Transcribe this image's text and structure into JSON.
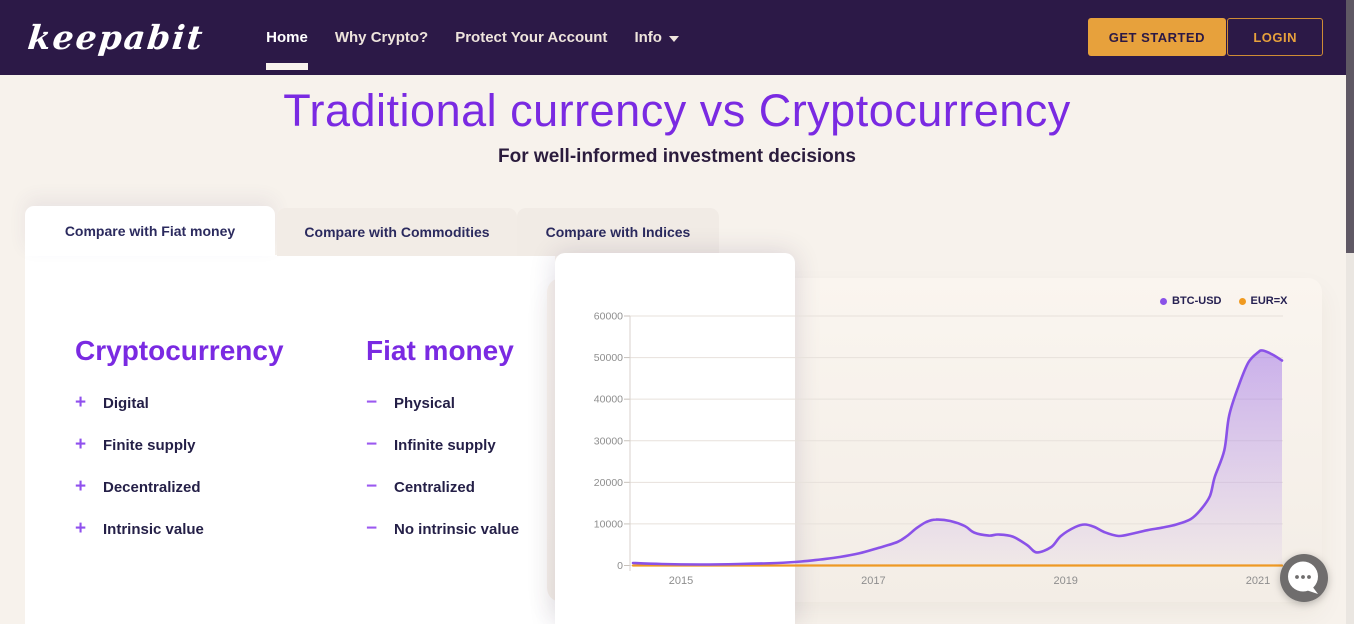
{
  "navbar": {
    "logo": "keepabit",
    "links": [
      {
        "label": "Home"
      },
      {
        "label": "Why Crypto?"
      },
      {
        "label": "Protect Your Account"
      },
      {
        "label": "Info"
      }
    ],
    "get_started_label": "GET STARTED",
    "login_label": "LOGIN",
    "accent_color": "#e7a13c",
    "bg_color": "#2c1947"
  },
  "hero": {
    "title": "Traditional currency vs Cryptocurrency",
    "subtitle": "For well-informed investment decisions",
    "title_color": "#7a2ae2"
  },
  "tabs": [
    {
      "label": "Compare with Fiat money",
      "active": true
    },
    {
      "label": "Compare with Commodities",
      "active": false
    },
    {
      "label": "Compare with Indices",
      "active": false
    }
  ],
  "compare": {
    "crypto": {
      "heading": "Cryptocurrency",
      "bullet": "+",
      "items": [
        "Digital",
        "Finite supply",
        "Decentralized",
        "Intrinsic value"
      ]
    },
    "fiat": {
      "heading": "Fiat money",
      "bullet": "−",
      "items": [
        "Physical",
        "Infinite supply",
        "Centralized",
        "No intrinsic value"
      ]
    }
  },
  "chart_data": {
    "type": "area",
    "series": [
      {
        "name": "BTC-USD",
        "color": "#8a52e8",
        "points": [
          [
            2014.5,
            600
          ],
          [
            2014.8,
            360
          ],
          [
            2015.2,
            240
          ],
          [
            2015.6,
            360
          ],
          [
            2016.0,
            600
          ],
          [
            2016.25,
            950
          ],
          [
            2016.45,
            1450
          ],
          [
            2016.65,
            2050
          ],
          [
            2016.85,
            2900
          ],
          [
            2017.05,
            4200
          ],
          [
            2017.25,
            5650
          ],
          [
            2017.35,
            7100
          ],
          [
            2017.45,
            9000
          ],
          [
            2017.55,
            10450
          ],
          [
            2017.65,
            11050
          ],
          [
            2017.8,
            10700
          ],
          [
            2017.95,
            9500
          ],
          [
            2018.05,
            7900
          ],
          [
            2018.2,
            7200
          ],
          [
            2018.3,
            7450
          ],
          [
            2018.45,
            6950
          ],
          [
            2018.6,
            4900
          ],
          [
            2018.7,
            3150
          ],
          [
            2018.85,
            4450
          ],
          [
            2018.95,
            7100
          ],
          [
            2019.1,
            9250
          ],
          [
            2019.2,
            9850
          ],
          [
            2019.3,
            9250
          ],
          [
            2019.4,
            8050
          ],
          [
            2019.55,
            7100
          ],
          [
            2019.7,
            7700
          ],
          [
            2019.85,
            8500
          ],
          [
            2020.0,
            9100
          ],
          [
            2020.15,
            9850
          ],
          [
            2020.3,
            11150
          ],
          [
            2020.4,
            13300
          ],
          [
            2020.5,
            16700
          ],
          [
            2020.55,
            21250
          ],
          [
            2020.65,
            27700
          ],
          [
            2020.7,
            36100
          ],
          [
            2020.8,
            43300
          ],
          [
            2020.9,
            48850
          ],
          [
            2021.0,
            51250
          ],
          [
            2021.05,
            51700
          ],
          [
            2021.15,
            50750
          ],
          [
            2021.25,
            49300
          ]
        ]
      },
      {
        "name": "EUR=X",
        "color": "#f09a20",
        "points": [
          [
            2014.5,
            1.2
          ],
          [
            2021.25,
            1.2
          ]
        ]
      }
    ],
    "xlabel_ticks": [
      2015,
      2017,
      2019,
      2021
    ],
    "ylabel_ticks": [
      0,
      10000,
      20000,
      30000,
      40000,
      50000,
      60000
    ],
    "xlim": [
      2014.49,
      2021.26
    ],
    "ylim": [
      0,
      60000
    ],
    "grid": true,
    "legend_position": "top-right"
  }
}
